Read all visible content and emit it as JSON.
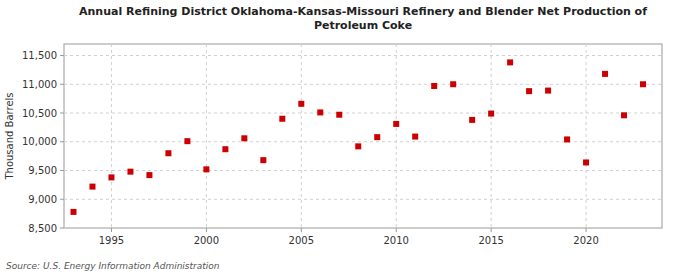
{
  "chart_data": {
    "type": "scatter",
    "title": "Annual Refining District Oklahoma-Kansas-Missouri Refinery and Blender Net Production of\nPetroleum Coke",
    "y_label": "Thousand Barrels",
    "source": "Source: U.S. Energy Information Administration",
    "x": [
      1993,
      1994,
      1995,
      1996,
      1997,
      1998,
      1999,
      2000,
      2001,
      2002,
      2003,
      2004,
      2005,
      2006,
      2007,
      2008,
      2009,
      2010,
      2011,
      2012,
      2013,
      2014,
      2015,
      2016,
      2017,
      2018,
      2019,
      2020,
      2021,
      2022,
      2023
    ],
    "values": [
      8780,
      9220,
      9380,
      9480,
      9420,
      9800,
      10010,
      9520,
      9870,
      10060,
      9680,
      10400,
      10660,
      10510,
      10470,
      9920,
      10080,
      10310,
      10090,
      10970,
      11000,
      10380,
      10490,
      11380,
      10880,
      10890,
      10040,
      9640,
      11180,
      10460,
      11000
    ],
    "color": "#cc0000",
    "marker": "square",
    "xlim": [
      1992.5,
      2024
    ],
    "xticks": [
      1995,
      2000,
      2005,
      2010,
      2015,
      2020
    ],
    "ylim": [
      8500,
      11700
    ],
    "yticks": [
      {
        "value": 8500,
        "label": "8,500"
      },
      {
        "value": 9000,
        "label": "9,000"
      },
      {
        "value": 9500,
        "label": "9,500"
      },
      {
        "value": 10000,
        "label": "10,000"
      },
      {
        "value": 10500,
        "label": "10,500"
      },
      {
        "value": 11000,
        "label": "11,000"
      },
      {
        "value": 11500,
        "label": "11,500"
      }
    ],
    "grid": true
  }
}
